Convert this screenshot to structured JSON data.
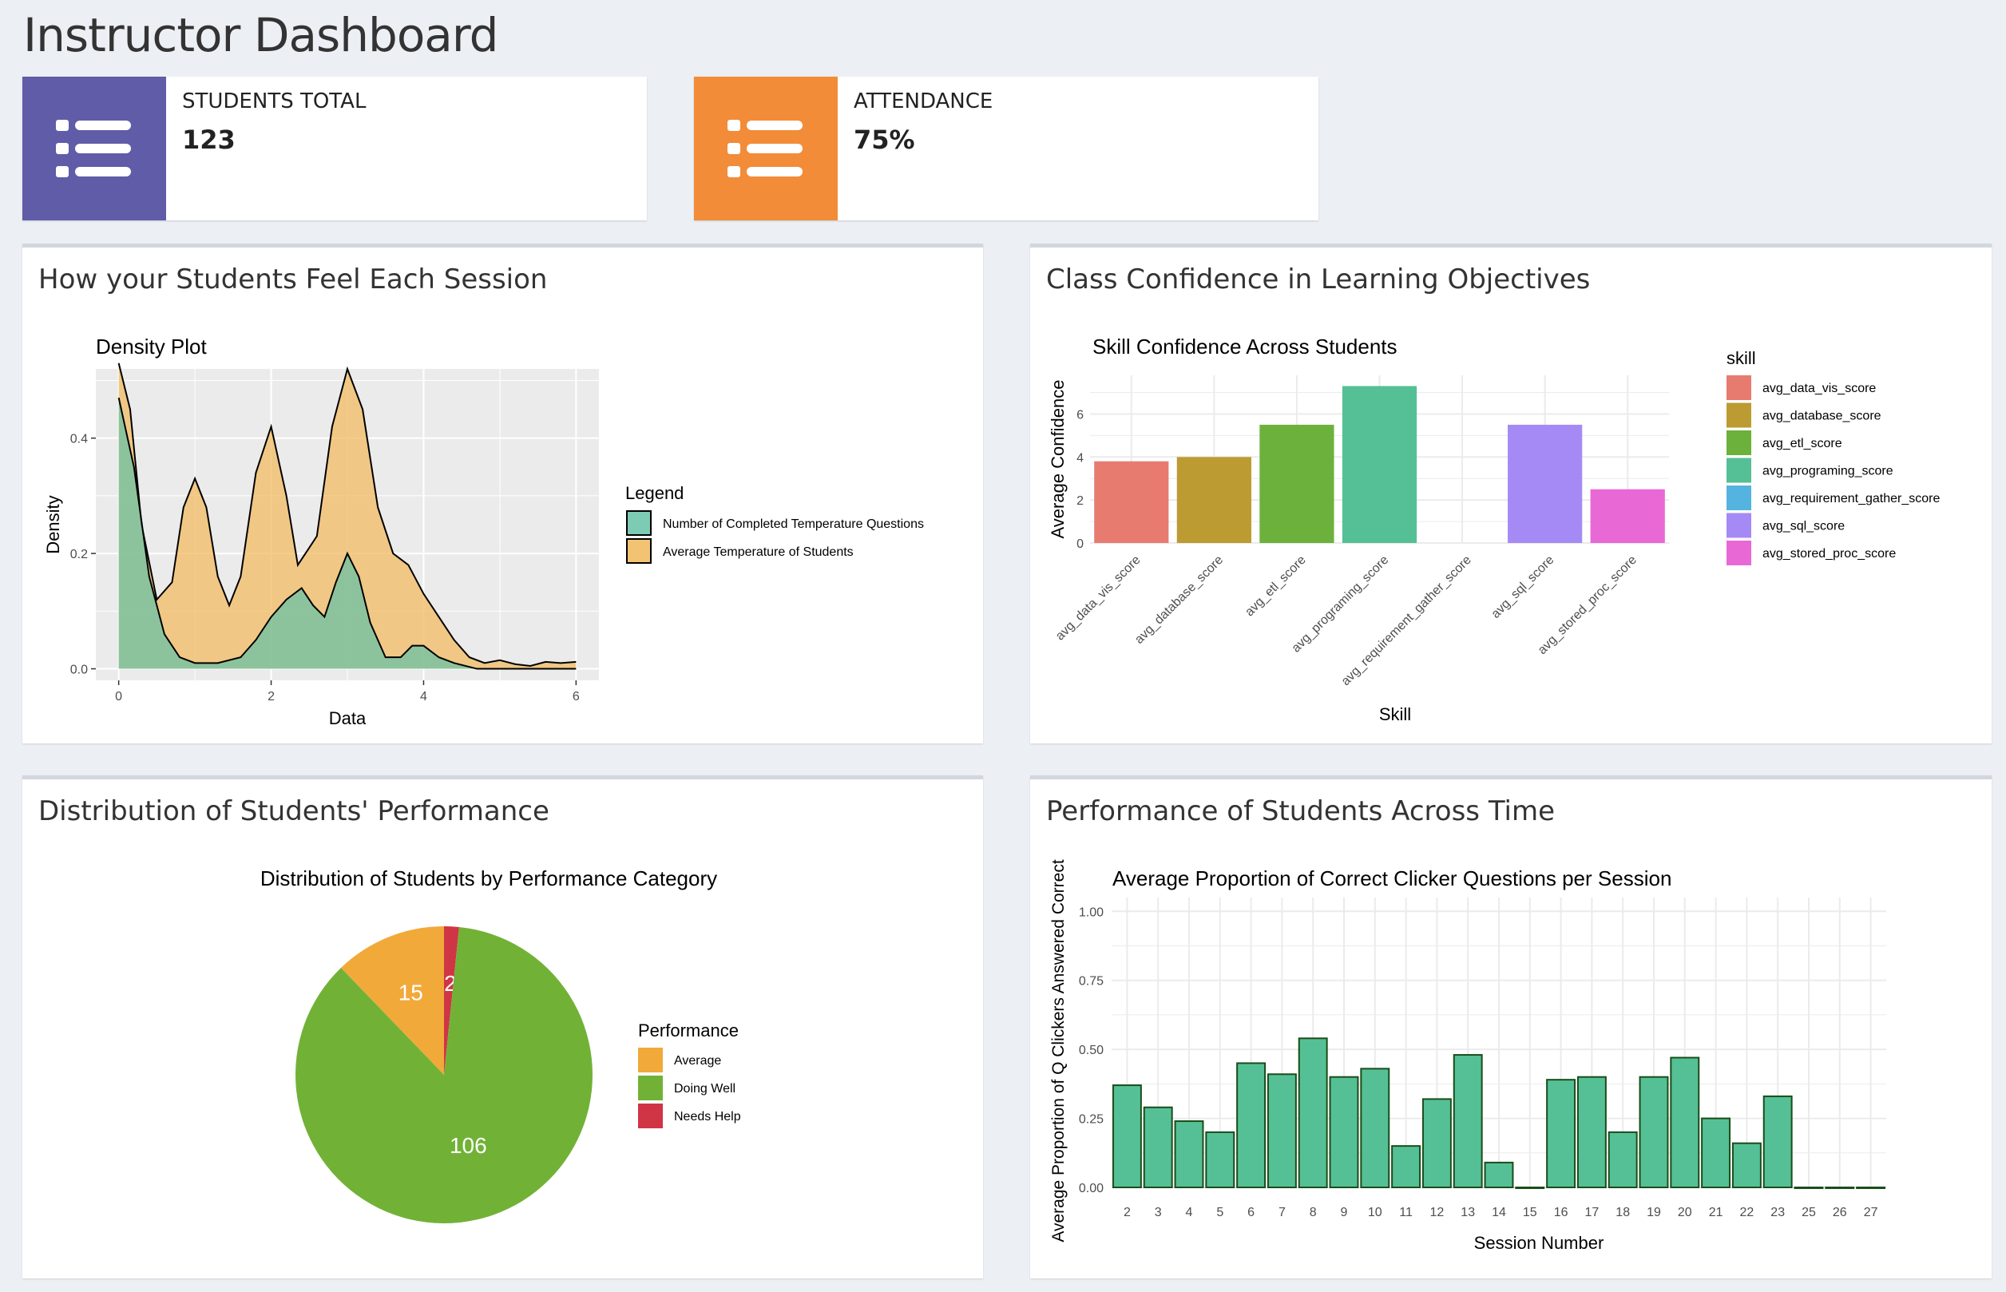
{
  "page": {
    "title": "Instructor Dashboard"
  },
  "info_boxes": [
    {
      "label": "STUDENTS TOTAL",
      "value": "123",
      "color": "#605ca8",
      "icon": "list-icon"
    },
    {
      "label": "ATTENDANCE",
      "value": "75%",
      "color": "#f39c12",
      "icon": "list-icon"
    }
  ],
  "panels": {
    "feel": {
      "title": "How your Students Feel Each Session"
    },
    "confidence": {
      "title": "Class Confidence in Learning Objectives"
    },
    "distribution": {
      "title": "Distribution of Students' Performance"
    },
    "time": {
      "title": "Performance of Students Across Time"
    }
  },
  "chart_data": [
    {
      "type": "area",
      "title": "Density Plot",
      "xlabel": "Data",
      "ylabel": "Density",
      "xlim": [
        0,
        6
      ],
      "ylim": [
        0,
        0.53
      ],
      "xticks": [
        "0",
        "2",
        "4",
        "6"
      ],
      "yticks": [
        "0.0",
        "0.2",
        "0.4"
      ],
      "legend_title": "Legend",
      "legend_position": "right",
      "series": [
        {
          "name": "Number of Completed Temperature Questions",
          "color": "#66c2a5",
          "points": [
            [
              0,
              0.47
            ],
            [
              0.2,
              0.35
            ],
            [
              0.4,
              0.16
            ],
            [
              0.6,
              0.06
            ],
            [
              0.8,
              0.02
            ],
            [
              1,
              0.01
            ],
            [
              1.3,
              0.01
            ],
            [
              1.6,
              0.02
            ],
            [
              1.8,
              0.05
            ],
            [
              2,
              0.09
            ],
            [
              2.2,
              0.12
            ],
            [
              2.4,
              0.14
            ],
            [
              2.55,
              0.11
            ],
            [
              2.7,
              0.09
            ],
            [
              2.85,
              0.15
            ],
            [
              3,
              0.2
            ],
            [
              3.15,
              0.16
            ],
            [
              3.3,
              0.08
            ],
            [
              3.5,
              0.02
            ],
            [
              3.7,
              0.02
            ],
            [
              3.85,
              0.04
            ],
            [
              4,
              0.04
            ],
            [
              4.2,
              0.02
            ],
            [
              4.4,
              0.01
            ],
            [
              4.7,
              0.0
            ],
            [
              6,
              0.0
            ]
          ]
        },
        {
          "name": "Average Temperature of Students",
          "color": "#f1b85c",
          "points": [
            [
              0,
              0.53
            ],
            [
              0.15,
              0.45
            ],
            [
              0.3,
              0.25
            ],
            [
              0.5,
              0.12
            ],
            [
              0.7,
              0.15
            ],
            [
              0.85,
              0.28
            ],
            [
              1,
              0.33
            ],
            [
              1.15,
              0.28
            ],
            [
              1.3,
              0.16
            ],
            [
              1.45,
              0.11
            ],
            [
              1.6,
              0.16
            ],
            [
              1.8,
              0.34
            ],
            [
              2,
              0.42
            ],
            [
              2.2,
              0.3
            ],
            [
              2.35,
              0.18
            ],
            [
              2.6,
              0.23
            ],
            [
              2.8,
              0.42
            ],
            [
              3,
              0.52
            ],
            [
              3.2,
              0.45
            ],
            [
              3.4,
              0.28
            ],
            [
              3.6,
              0.2
            ],
            [
              3.8,
              0.18
            ],
            [
              4,
              0.13
            ],
            [
              4.2,
              0.09
            ],
            [
              4.4,
              0.05
            ],
            [
              4.6,
              0.02
            ],
            [
              4.8,
              0.01
            ],
            [
              5,
              0.015
            ],
            [
              5.2,
              0.008
            ],
            [
              5.4,
              0.005
            ],
            [
              5.6,
              0.012
            ],
            [
              5.8,
              0.01
            ],
            [
              6,
              0.012
            ]
          ]
        }
      ]
    },
    {
      "type": "bar",
      "title": "Skill Confidence Across Students",
      "xlabel": "Skill",
      "ylabel": "Average Confidence",
      "ylim": [
        0,
        7.8
      ],
      "yticks": [
        "0",
        "2",
        "4",
        "6"
      ],
      "legend_title": "skill",
      "legend_position": "right",
      "categories": [
        "avg_data_vis_score",
        "avg_database_score",
        "avg_etl_score",
        "avg_programing_score",
        "avg_requirement_gather_score",
        "avg_sql_score",
        "avg_stored_proc_score"
      ],
      "values": [
        3.8,
        4.0,
        5.5,
        7.3,
        0,
        5.5,
        2.5
      ],
      "colors": [
        "#e87b70",
        "#bd9b33",
        "#6cb13c",
        "#55c095",
        "#55b3e0",
        "#a58af5",
        "#e868d5"
      ]
    },
    {
      "type": "pie",
      "title": "Distribution of Students by Performance Category",
      "legend_title": "Performance",
      "legend_position": "right",
      "slices": [
        {
          "label": "Average",
          "value": 15,
          "color": "#f1a93a"
        },
        {
          "label": "Doing Well",
          "value": 106,
          "color": "#71b236"
        },
        {
          "label": "Needs Help",
          "value": 2,
          "color": "#d03545"
        }
      ]
    },
    {
      "type": "bar",
      "title": "Average Proportion of Correct Clicker Questions per Session",
      "xlabel": "Session Number",
      "ylabel": "Average Proportion of Q Clickers Answered Correct",
      "ylim": [
        0,
        1.05
      ],
      "yticks": [
        "0.00",
        "0.25",
        "0.50",
        "0.75",
        "1.00"
      ],
      "color": "#55c095",
      "categories": [
        "2",
        "3",
        "4",
        "5",
        "6",
        "7",
        "8",
        "9",
        "10",
        "11",
        "12",
        "13",
        "14",
        "15",
        "16",
        "17",
        "18",
        "19",
        "20",
        "21",
        "22",
        "23",
        "25",
        "26",
        "27"
      ],
      "values": [
        0.37,
        0.29,
        0.24,
        0.2,
        0.45,
        0.41,
        0.54,
        0.4,
        0.43,
        0.15,
        0.32,
        0.48,
        0.09,
        0.0,
        0.39,
        0.4,
        0.2,
        0.4,
        0.47,
        0.25,
        0.16,
        0.33,
        0.0,
        0.0,
        0.0
      ]
    }
  ]
}
